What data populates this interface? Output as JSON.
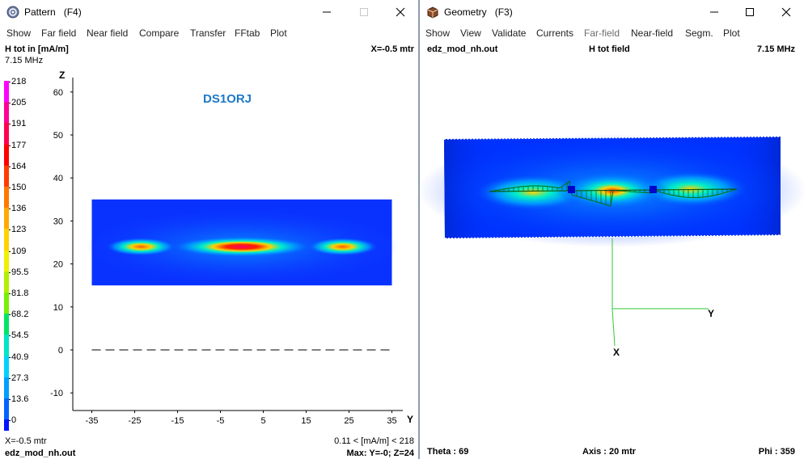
{
  "pattern_window": {
    "title": "Pattern",
    "shortcut": "(F4)",
    "menu": [
      "Show",
      "Far field",
      "Near field",
      "Compare",
      "Transfer",
      "FFtab",
      "Plot"
    ],
    "header_left": "H tot in [mA/m]",
    "frequency": "7.15 MHz",
    "header_right": "X=-0.5 mtr",
    "callsign": "DS1ORJ",
    "legend_values": [
      "218",
      "205",
      "191",
      "177",
      "164",
      "150",
      "136",
      "123",
      "109",
      "95.5",
      "81.8",
      "68.2",
      "54.5",
      "40.9",
      "27.3",
      "13.6",
      "0"
    ],
    "legend_colors": [
      "#ff00ff",
      "#ff0096",
      "#ff0050",
      "#ff0000",
      "#ff3c00",
      "#ff7800",
      "#ffaa00",
      "#ffd200",
      "#f0f000",
      "#b4f000",
      "#78f000",
      "#00e664",
      "#00e6c8",
      "#00d2ff",
      "#00a0ff",
      "#0064ff",
      "#0014ff"
    ],
    "footer_left": "X=-0.5 mtr",
    "footer_file": "edz_mod_nh.out",
    "footer_range": "0.11 < [mA/m] < 218",
    "footer_max": "Max: Y=-0; Z=24",
    "chart_data": {
      "type": "heatmap",
      "xlabel": "Y",
      "ylabel": "Z",
      "xlim": [
        -37,
        37
      ],
      "ylim": [
        -15,
        65
      ],
      "x_ticks": [
        -35,
        -25,
        -15,
        -5,
        5,
        15,
        25,
        35
      ],
      "y_ticks": [
        60,
        50,
        40,
        30,
        20,
        10,
        0,
        -10
      ],
      "field_region": {
        "y_range": [
          -35,
          35
        ],
        "z_range": [
          15,
          35
        ]
      },
      "antenna_z": 24,
      "antenna_segments": [
        [
          -29,
          -18
        ],
        [
          -14,
          14
        ],
        [
          18,
          29
        ]
      ],
      "ground_z": 0
    }
  },
  "geometry_window": {
    "title": "Geometry",
    "shortcut": "(F3)",
    "menu": [
      "Show",
      "View",
      "Validate",
      "Currents",
      "Far-field",
      "Near-field",
      "Segm.",
      "Plot"
    ],
    "menu_disabled": [
      "Far-field"
    ],
    "header_file": "edz_mod_nh.out",
    "header_center": "H tot field",
    "header_freq": "7.15 MHz",
    "axis_y": "Y",
    "axis_x": "X",
    "footer_theta": "Theta : 69",
    "footer_axis": "Axis : 20 mtr",
    "footer_phi": "Phi : 359",
    "colors": {
      "field_bg": "#0032ff",
      "axis_line": "#32c832",
      "current_curve": "#0a6e0a",
      "source_marker": "#0000c8"
    }
  }
}
